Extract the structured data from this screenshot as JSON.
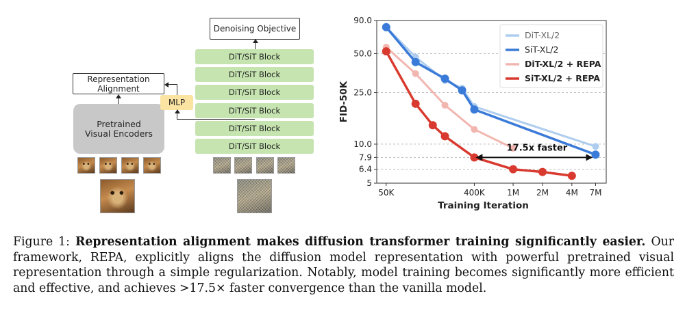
{
  "diagram": {
    "objective_label": "Denoising Objective",
    "blocks": [
      "DiT/SiT Block",
      "DiT/SiT Block",
      "DiT/SiT Block",
      "DiT/SiT Block",
      "DiT/SiT Block",
      "DiT/SiT Block"
    ],
    "alignment_label_line1": "Representation",
    "alignment_label_line2": "Alignment",
    "mlp_label": "MLP",
    "encoder_label_line1": "Pretrained",
    "encoder_label_line2": "Visual Encoders"
  },
  "chart_data": {
    "type": "line",
    "xlabel": "Training Iteration",
    "ylabel": "FID-50K",
    "x_ticks": [
      "50K",
      "400K",
      "1M",
      "2M",
      "4M",
      "7M"
    ],
    "y_ticks": [
      "5",
      "6.4",
      "7.9",
      "10.0",
      "25.0",
      "50.0",
      "90.0"
    ],
    "y_scale": "log",
    "x_scale": "log",
    "ylim": [
      5,
      90
    ],
    "grid": "horizontal dashed at y ticks",
    "legend_position": "top-right",
    "series": [
      {
        "name": "DiT-XL/2",
        "color": "#aecdef",
        "faded": true,
        "points": [
          [
            50000,
            80
          ],
          [
            100000,
            47
          ],
          [
            200000,
            31
          ],
          [
            300000,
            27
          ],
          [
            400000,
            19.5
          ],
          [
            7000000,
            9.6
          ]
        ]
      },
      {
        "name": "SiT-XL/2",
        "color": "#3a7ad8",
        "faded": false,
        "points": [
          [
            50000,
            80
          ],
          [
            100000,
            43
          ],
          [
            200000,
            32
          ],
          [
            300000,
            26
          ],
          [
            400000,
            18.5
          ],
          [
            7000000,
            8.3
          ]
        ]
      },
      {
        "name": "DiT-XL/2 + REPA",
        "color": "#f2b6b0",
        "faded": true,
        "points": [
          [
            50000,
            56
          ],
          [
            100000,
            35
          ],
          [
            200000,
            20
          ],
          [
            400000,
            13
          ],
          [
            1000000,
            9.3
          ]
        ]
      },
      {
        "name": "SiT-XL/2 + REPA",
        "color": "#d93a2f",
        "faded": false,
        "points": [
          [
            50000,
            52
          ],
          [
            100000,
            20.5
          ],
          [
            150000,
            14
          ],
          [
            200000,
            11.5
          ],
          [
            400000,
            7.9
          ],
          [
            1000000,
            6.4
          ],
          [
            2000000,
            6.1
          ],
          [
            4000000,
            5.7
          ]
        ]
      }
    ],
    "annotation": "17.5x faster"
  },
  "caption": {
    "prefix": "Figure 1: ",
    "bold": "Representation alignment makes diffusion transformer training significantly easier.",
    "body": "Our framework, REPA, explicitly aligns the diffusion model representation with powerful pretrained visual representation through a simple regularization. Notably, model training becomes significantly more efficient and effective, and achieves >17.5× faster convergence than the vanilla model."
  }
}
